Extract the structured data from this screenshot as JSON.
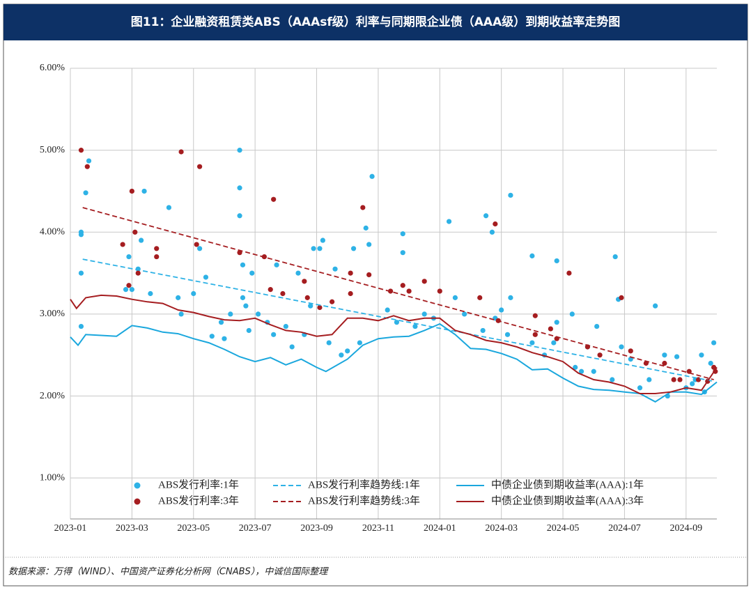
{
  "chart_data": {
    "type": "scatter",
    "title": "图11：企业融资租赁类ABS（AAAsf级）利率与同期限企业债（AAA级）到期收益率走势图",
    "source": "数据来源：万得（WIND）、中国资产证券化分析网（CNABS），中诚信国际整理",
    "xlim": [
      0,
      21
    ],
    "xticks": [
      {
        "value": 0,
        "label": "2023-01"
      },
      {
        "value": 2,
        "label": "2023-03"
      },
      {
        "value": 4,
        "label": "2023-05"
      },
      {
        "value": 6,
        "label": "2023-07"
      },
      {
        "value": 8,
        "label": "2023-09"
      },
      {
        "value": 10,
        "label": "2023-11"
      },
      {
        "value": 12,
        "label": "2024-01"
      },
      {
        "value": 14,
        "label": "2024-03"
      },
      {
        "value": 16,
        "label": "2024-05"
      },
      {
        "value": 18,
        "label": "2024-07"
      },
      {
        "value": 20,
        "label": "2024-09"
      }
    ],
    "ylim": [
      0.5,
      6
    ],
    "yticks": [
      {
        "value": 1,
        "label": "1.00%"
      },
      {
        "value": 2,
        "label": "2.00%"
      },
      {
        "value": 3,
        "label": "3.00%"
      },
      {
        "value": 4,
        "label": "4.00%"
      },
      {
        "value": 5,
        "label": "5.00%"
      },
      {
        "value": 6,
        "label": "6.00%"
      }
    ],
    "grid": true,
    "series": [
      {
        "name": "ABS发行利率:1年",
        "type": "scatter",
        "color": "#2eb2e6",
        "x": [
          0.35,
          0.35,
          0.35,
          0.35,
          0.5,
          0.6,
          1.8,
          1.9,
          2.0,
          2.2,
          2.3,
          2.4,
          2.6,
          3.2,
          3.5,
          3.6,
          4.0,
          4.2,
          4.4,
          4.6,
          4.9,
          5.0,
          5.2,
          5.5,
          5.5,
          5.5,
          5.6,
          5.6,
          5.7,
          5.8,
          5.9,
          6.1,
          6.4,
          6.6,
          6.7,
          7.0,
          7.2,
          7.4,
          7.6,
          7.8,
          7.9,
          8.1,
          8.2,
          8.4,
          8.6,
          8.8,
          9.0,
          9.2,
          9.4,
          9.6,
          9.7,
          9.8,
          10.3,
          10.6,
          10.8,
          10.8,
          11.2,
          11.5,
          11.8,
          12.3,
          12.5,
          12.8,
          13.4,
          13.5,
          13.7,
          13.8,
          14.0,
          14.2,
          14.3,
          14.3,
          15.0,
          15.0,
          15.4,
          15.7,
          15.8,
          15.8,
          16.3,
          16.4,
          16.6,
          16.8,
          17.0,
          17.1,
          17.6,
          17.7,
          17.8,
          17.9,
          18.2,
          18.5,
          18.8,
          19.0,
          19.3,
          19.4,
          19.7,
          20.0,
          20.2,
          20.3,
          20.5,
          20.6,
          20.8,
          20.9
        ],
        "values": [
          2.85,
          3.5,
          3.97,
          4.0,
          4.48,
          4.87,
          3.3,
          3.7,
          3.3,
          3.55,
          3.9,
          4.5,
          3.25,
          4.3,
          3.2,
          3.0,
          3.25,
          3.8,
          3.45,
          2.73,
          2.9,
          2.7,
          3.0,
          5.0,
          4.54,
          4.2,
          3.6,
          3.2,
          3.1,
          2.8,
          3.5,
          3.0,
          2.9,
          2.75,
          3.6,
          2.85,
          2.6,
          3.5,
          2.75,
          3.1,
          3.8,
          3.8,
          3.9,
          2.65,
          3.55,
          2.5,
          2.55,
          3.8,
          2.65,
          4.05,
          3.85,
          4.68,
          3.05,
          2.9,
          3.75,
          3.98,
          2.85,
          3.0,
          2.95,
          4.13,
          3.2,
          3.0,
          2.8,
          4.2,
          4.0,
          2.95,
          3.05,
          2.75,
          4.45,
          3.2,
          3.71,
          2.65,
          2.5,
          2.65,
          2.9,
          3.65,
          3.0,
          2.35,
          2.3,
          2.6,
          2.3,
          2.85,
          2.2,
          3.7,
          3.18,
          2.6,
          2.45,
          2.1,
          2.2,
          3.1,
          2.5,
          2.0,
          2.48,
          2.1,
          2.15,
          2.2,
          2.5,
          2.05,
          2.4,
          2.65
        ]
      },
      {
        "name": "ABS发行利率趋势线:1年",
        "type": "line",
        "dash": true,
        "color": "#2eb2e6",
        "x": [
          0.4,
          20.9
        ],
        "values": [
          3.67,
          2.18
        ]
      },
      {
        "name": "中债企业债到期收益率(AAA):1年",
        "type": "line",
        "dash": false,
        "color": "#1aa7dd",
        "x": [
          0,
          0.25,
          0.5,
          1,
          1.5,
          2,
          2.5,
          3,
          3.5,
          4,
          4.5,
          5,
          5.5,
          6,
          6.5,
          7,
          7.5,
          8,
          8.3,
          9,
          9.5,
          10,
          10.5,
          11,
          11.5,
          12,
          12.5,
          13,
          13.5,
          14,
          14.5,
          15,
          15.5,
          16,
          16.5,
          17,
          17.5,
          18,
          18.5,
          19,
          19.5,
          20,
          20.5,
          21
        ],
        "values": [
          2.72,
          2.62,
          2.75,
          2.74,
          2.73,
          2.86,
          2.83,
          2.78,
          2.76,
          2.7,
          2.65,
          2.57,
          2.48,
          2.42,
          2.47,
          2.38,
          2.45,
          2.35,
          2.3,
          2.45,
          2.62,
          2.7,
          2.72,
          2.73,
          2.8,
          2.88,
          2.75,
          2.58,
          2.57,
          2.52,
          2.45,
          2.32,
          2.33,
          2.22,
          2.12,
          2.08,
          2.07,
          2.05,
          2.03,
          1.93,
          2.05,
          2.05,
          2.02,
          2.17
        ]
      },
      {
        "name": "ABS发行利率:3年",
        "type": "scatter",
        "color": "#a51d20",
        "x": [
          0.35,
          0.55,
          1.7,
          1.9,
          2.0,
          2.1,
          2.2,
          2.8,
          2.8,
          3.6,
          4.2,
          4.1,
          5.5,
          6.3,
          6.5,
          6.6,
          6.9,
          7.6,
          7.7,
          8.1,
          8.5,
          9.1,
          9.1,
          9.5,
          9.7,
          10.4,
          10.8,
          11.0,
          11.5,
          12.0,
          13.3,
          13.8,
          13.9,
          15.1,
          15.1,
          15.6,
          15.8,
          16.2,
          16.8,
          17.2,
          17.9,
          18.2,
          18.7,
          19.3,
          19.6,
          19.8,
          20.1,
          20.4,
          20.7,
          20.9,
          20.95
        ],
        "values": [
          5.0,
          4.8,
          3.85,
          3.35,
          4.5,
          4.0,
          3.5,
          3.8,
          3.7,
          4.98,
          4.8,
          3.85,
          3.75,
          3.7,
          3.3,
          4.4,
          3.25,
          3.4,
          3.2,
          3.08,
          3.15,
          3.5,
          3.25,
          4.3,
          3.48,
          3.28,
          3.35,
          3.28,
          3.4,
          3.28,
          3.2,
          4.1,
          2.92,
          2.98,
          2.75,
          2.82,
          2.7,
          3.5,
          2.6,
          2.5,
          3.2,
          2.55,
          2.4,
          2.4,
          2.2,
          2.2,
          2.3,
          2.2,
          2.18,
          2.35,
          2.3
        ]
      },
      {
        "name": "ABS发行利率趋势线:3年",
        "type": "line",
        "dash": true,
        "color": "#a51d20",
        "x": [
          0.4,
          20.9
        ],
        "values": [
          4.3,
          2.2
        ]
      },
      {
        "name": "中债企业债到期收益率(AAA):3年",
        "type": "line",
        "dash": false,
        "color": "#a51d20",
        "x": [
          0,
          0.2,
          0.5,
          1,
          1.5,
          2,
          2.5,
          3,
          3.5,
          4,
          4.5,
          5,
          5.5,
          6,
          6.5,
          7,
          7.5,
          8,
          8.5,
          9,
          9.5,
          10,
          10.5,
          11,
          11.5,
          12,
          12.5,
          13,
          13.5,
          14,
          14.5,
          15,
          15.5,
          16,
          16.5,
          17,
          17.5,
          18,
          18.5,
          19,
          19.5,
          20,
          20.5,
          21
        ],
        "values": [
          3.18,
          3.07,
          3.2,
          3.23,
          3.22,
          3.18,
          3.15,
          3.13,
          3.05,
          3.02,
          2.97,
          2.93,
          2.92,
          2.95,
          2.87,
          2.8,
          2.78,
          2.73,
          2.75,
          2.95,
          2.95,
          2.92,
          2.98,
          2.92,
          2.95,
          2.95,
          2.8,
          2.75,
          2.68,
          2.65,
          2.6,
          2.53,
          2.48,
          2.42,
          2.28,
          2.2,
          2.17,
          2.12,
          2.03,
          2.03,
          2.05,
          2.1,
          2.07,
          2.35
        ]
      }
    ]
  }
}
